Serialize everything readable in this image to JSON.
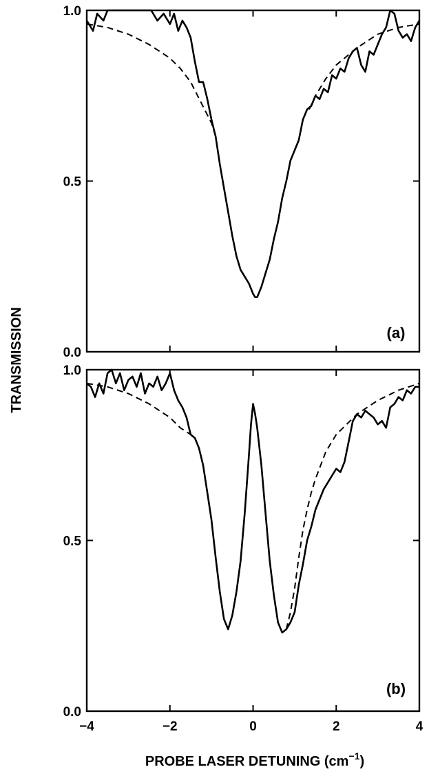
{
  "chart_data": [
    {
      "type": "line",
      "panel_label": "(a)",
      "xlim": [
        -4,
        4
      ],
      "ylim": [
        0.0,
        1.0
      ],
      "x_ticks": [
        -4,
        -2,
        0,
        2,
        4
      ],
      "y_ticks": [
        0.0,
        0.5,
        1.0
      ],
      "y_tick_labels": [
        "0.0",
        "0.5",
        "1.0"
      ],
      "series": [
        {
          "style": "solid",
          "points": [
            [
              -4.0,
              0.97
            ],
            [
              -3.85,
              0.94
            ],
            [
              -3.75,
              0.99
            ],
            [
              -3.6,
              0.97
            ],
            [
              -3.5,
              1.0
            ],
            [
              -2.45,
              1.0
            ],
            [
              -2.3,
              0.97
            ],
            [
              -2.15,
              0.99
            ],
            [
              -2.0,
              0.96
            ],
            [
              -1.9,
              0.99
            ],
            [
              -1.8,
              0.94
            ],
            [
              -1.7,
              0.97
            ],
            [
              -1.6,
              0.95
            ],
            [
              -1.5,
              0.92
            ],
            [
              -1.4,
              0.85
            ],
            [
              -1.3,
              0.79
            ],
            [
              -1.2,
              0.79
            ],
            [
              -1.1,
              0.74
            ],
            [
              -1.0,
              0.68
            ],
            [
              -0.9,
              0.63
            ],
            [
              -0.8,
              0.55
            ],
            [
              -0.7,
              0.48
            ],
            [
              -0.6,
              0.41
            ],
            [
              -0.5,
              0.34
            ],
            [
              -0.4,
              0.28
            ],
            [
              -0.3,
              0.24
            ],
            [
              -0.2,
              0.22
            ],
            [
              -0.1,
              0.2
            ],
            [
              0.0,
              0.17
            ],
            [
              0.05,
              0.16
            ],
            [
              0.1,
              0.16
            ],
            [
              0.2,
              0.19
            ],
            [
              0.3,
              0.23
            ],
            [
              0.4,
              0.27
            ],
            [
              0.5,
              0.33
            ],
            [
              0.6,
              0.38
            ],
            [
              0.7,
              0.45
            ],
            [
              0.8,
              0.5
            ],
            [
              0.9,
              0.56
            ],
            [
              1.0,
              0.59
            ],
            [
              1.1,
              0.62
            ],
            [
              1.2,
              0.68
            ],
            [
              1.3,
              0.71
            ],
            [
              1.4,
              0.72
            ],
            [
              1.5,
              0.75
            ],
            [
              1.6,
              0.74
            ],
            [
              1.7,
              0.77
            ],
            [
              1.8,
              0.76
            ],
            [
              1.9,
              0.81
            ],
            [
              2.0,
              0.8
            ],
            [
              2.1,
              0.83
            ],
            [
              2.2,
              0.82
            ],
            [
              2.3,
              0.86
            ],
            [
              2.4,
              0.88
            ],
            [
              2.5,
              0.89
            ],
            [
              2.6,
              0.84
            ],
            [
              2.7,
              0.82
            ],
            [
              2.8,
              0.88
            ],
            [
              2.9,
              0.87
            ],
            [
              3.0,
              0.9
            ],
            [
              3.1,
              0.93
            ],
            [
              3.2,
              0.95
            ],
            [
              3.3,
              1.0
            ],
            [
              3.4,
              0.99
            ],
            [
              3.5,
              0.94
            ],
            [
              3.6,
              0.92
            ],
            [
              3.7,
              0.93
            ],
            [
              3.8,
              0.91
            ],
            [
              3.9,
              0.95
            ],
            [
              4.0,
              0.97
            ]
          ]
        },
        {
          "style": "dashed",
          "points": [
            [
              -4.0,
              0.96
            ],
            [
              -3.5,
              0.95
            ],
            [
              -3.0,
              0.93
            ],
            [
              -2.5,
              0.9
            ],
            [
              -2.0,
              0.86
            ],
            [
              -1.75,
              0.83
            ],
            [
              -1.5,
              0.79
            ],
            [
              -1.25,
              0.73
            ],
            [
              -1.0,
              0.67
            ],
            [
              -0.9,
              0.63
            ]
          ]
        },
        {
          "style": "dashed",
          "points": [
            [
              1.35,
              0.71
            ],
            [
              1.5,
              0.75
            ],
            [
              1.75,
              0.8
            ],
            [
              2.0,
              0.84
            ],
            [
              2.5,
              0.89
            ],
            [
              3.0,
              0.93
            ],
            [
              3.5,
              0.95
            ],
            [
              4.0,
              0.96
            ]
          ]
        }
      ]
    },
    {
      "type": "line",
      "panel_label": "(b)",
      "xlim": [
        -4,
        4
      ],
      "ylim": [
        0.0,
        1.0
      ],
      "x_ticks": [
        -4,
        -2,
        0,
        2,
        4
      ],
      "x_tick_labels": [
        "−4",
        "−2",
        "0",
        "2",
        "4"
      ],
      "y_ticks": [
        0.0,
        0.5,
        1.0
      ],
      "y_tick_labels": [
        "0.0",
        "0.5",
        "1.0"
      ],
      "series": [
        {
          "style": "solid",
          "points": [
            [
              -4.0,
              0.96
            ],
            [
              -3.9,
              0.95
            ],
            [
              -3.8,
              0.92
            ],
            [
              -3.7,
              0.96
            ],
            [
              -3.6,
              0.93
            ],
            [
              -3.5,
              0.99
            ],
            [
              -3.4,
              1.0
            ],
            [
              -3.3,
              0.96
            ],
            [
              -3.2,
              0.99
            ],
            [
              -3.1,
              0.94
            ],
            [
              -3.0,
              0.97
            ],
            [
              -2.9,
              0.98
            ],
            [
              -2.8,
              0.95
            ],
            [
              -2.7,
              0.99
            ],
            [
              -2.6,
              0.93
            ],
            [
              -2.5,
              0.96
            ],
            [
              -2.4,
              0.95
            ],
            [
              -2.3,
              0.98
            ],
            [
              -2.2,
              0.94
            ],
            [
              -2.1,
              0.96
            ],
            [
              -2.0,
              0.99
            ],
            [
              -1.9,
              0.94
            ],
            [
              -1.8,
              0.91
            ],
            [
              -1.7,
              0.89
            ],
            [
              -1.6,
              0.86
            ],
            [
              -1.5,
              0.81
            ],
            [
              -1.4,
              0.8
            ],
            [
              -1.3,
              0.77
            ],
            [
              -1.2,
              0.72
            ],
            [
              -1.1,
              0.64
            ],
            [
              -1.0,
              0.56
            ],
            [
              -0.9,
              0.45
            ],
            [
              -0.8,
              0.35
            ],
            [
              -0.7,
              0.27
            ],
            [
              -0.6,
              0.24
            ],
            [
              -0.5,
              0.28
            ],
            [
              -0.4,
              0.35
            ],
            [
              -0.3,
              0.44
            ],
            [
              -0.2,
              0.58
            ],
            [
              -0.1,
              0.75
            ],
            [
              -0.05,
              0.84
            ],
            [
              0.0,
              0.9
            ],
            [
              0.05,
              0.87
            ],
            [
              0.1,
              0.83
            ],
            [
              0.2,
              0.72
            ],
            [
              0.3,
              0.58
            ],
            [
              0.4,
              0.44
            ],
            [
              0.5,
              0.34
            ],
            [
              0.6,
              0.26
            ],
            [
              0.7,
              0.23
            ],
            [
              0.8,
              0.24
            ],
            [
              0.9,
              0.26
            ],
            [
              1.0,
              0.29
            ],
            [
              1.1,
              0.37
            ],
            [
              1.2,
              0.43
            ],
            [
              1.3,
              0.5
            ],
            [
              1.4,
              0.54
            ],
            [
              1.5,
              0.59
            ],
            [
              1.6,
              0.62
            ],
            [
              1.7,
              0.65
            ],
            [
              1.8,
              0.67
            ],
            [
              1.9,
              0.69
            ],
            [
              2.0,
              0.71
            ],
            [
              2.1,
              0.7
            ],
            [
              2.2,
              0.73
            ],
            [
              2.3,
              0.79
            ],
            [
              2.4,
              0.85
            ],
            [
              2.5,
              0.87
            ],
            [
              2.6,
              0.86
            ],
            [
              2.7,
              0.88
            ],
            [
              2.8,
              0.87
            ],
            [
              2.9,
              0.86
            ],
            [
              3.0,
              0.84
            ],
            [
              3.1,
              0.85
            ],
            [
              3.2,
              0.83
            ],
            [
              3.3,
              0.89
            ],
            [
              3.4,
              0.9
            ],
            [
              3.5,
              0.92
            ],
            [
              3.6,
              0.91
            ],
            [
              3.7,
              0.94
            ],
            [
              3.8,
              0.93
            ],
            [
              3.9,
              0.95
            ],
            [
              4.0,
              0.95
            ]
          ]
        },
        {
          "style": "dashed",
          "points": [
            [
              -4.0,
              0.96
            ],
            [
              -3.5,
              0.95
            ],
            [
              -3.0,
              0.93
            ],
            [
              -2.5,
              0.9
            ],
            [
              -2.0,
              0.86
            ],
            [
              -1.75,
              0.83
            ],
            [
              -1.5,
              0.81
            ]
          ]
        },
        {
          "style": "dashed",
          "points": [
            [
              0.8,
              0.24
            ],
            [
              0.9,
              0.29
            ],
            [
              1.0,
              0.36
            ],
            [
              1.1,
              0.45
            ],
            [
              1.2,
              0.53
            ],
            [
              1.3,
              0.59
            ],
            [
              1.4,
              0.64
            ],
            [
              1.5,
              0.68
            ],
            [
              1.75,
              0.76
            ],
            [
              2.0,
              0.81
            ],
            [
              2.5,
              0.87
            ],
            [
              3.0,
              0.91
            ],
            [
              3.5,
              0.94
            ],
            [
              4.0,
              0.96
            ]
          ]
        }
      ]
    }
  ],
  "ylabel": "TRANSMISSION",
  "xlabel": "PROBE LASER DETUNING (cm",
  "xlabel_superscript": "−1",
  "xlabel_close": ")"
}
